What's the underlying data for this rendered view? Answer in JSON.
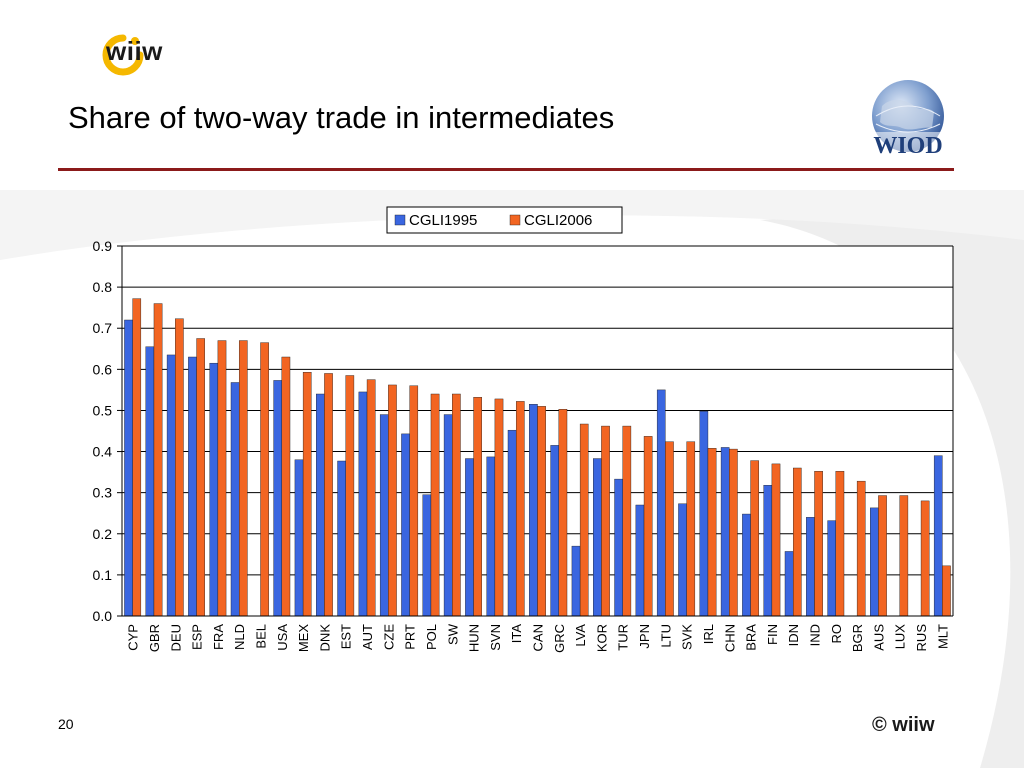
{
  "slide": {
    "logo_text": "wiiw",
    "title": "Share of two-way trade in intermediates",
    "wiod_logo_text": "WIOD",
    "page_number": "20",
    "copyright": "© wiiw"
  },
  "colors": {
    "series1": "#3a66e0",
    "series2": "#f26522",
    "title_rule": "#8b1a1a",
    "logo_yellow": "#f5b800"
  },
  "chart_data": {
    "type": "bar",
    "title": "",
    "xlabel": "",
    "ylabel": "",
    "ylim": [
      0,
      0.9
    ],
    "yticks": [
      "0.0",
      "0.1",
      "0.2",
      "0.3",
      "0.4",
      "0.5",
      "0.6",
      "0.7",
      "0.8",
      "0.9"
    ],
    "grid": true,
    "legend_position": "top",
    "categories": [
      "CYP",
      "GBR",
      "DEU",
      "ESP",
      "FRA",
      "NLD",
      "BEL",
      "USA",
      "MEX",
      "DNK",
      "EST",
      "AUT",
      "CZE",
      "PRT",
      "POL",
      "SW",
      "HUN",
      "SVN",
      "ITA",
      "CAN",
      "GRC",
      "LVA",
      "KOR",
      "TUR",
      "JPN",
      "LTU",
      "SVK",
      "IRL",
      "CHN",
      "BRA",
      "FIN",
      "IDN",
      "IND",
      "RO",
      "BGR",
      "AUS",
      "LUX",
      "RUS",
      "MLT"
    ],
    "series": [
      {
        "name": "CGLI1995",
        "values": [
          0.72,
          0.655,
          0.635,
          0.63,
          0.615,
          0.568,
          null,
          0.573,
          0.38,
          0.54,
          0.377,
          0.545,
          0.49,
          0.443,
          0.295,
          0.49,
          0.383,
          0.387,
          0.452,
          0.515,
          0.415,
          0.17,
          0.383,
          0.333,
          0.27,
          0.55,
          0.273,
          0.498,
          0.41,
          0.248,
          0.318,
          0.157,
          0.24,
          0.232,
          null,
          0.263,
          null,
          null,
          0.39
        ]
      },
      {
        "name": "CGLI2006",
        "values": [
          0.772,
          0.76,
          0.723,
          0.675,
          0.67,
          0.67,
          0.665,
          0.63,
          0.593,
          0.59,
          0.585,
          0.575,
          0.562,
          0.56,
          0.54,
          0.54,
          0.532,
          0.528,
          0.522,
          0.51,
          0.503,
          0.467,
          0.462,
          0.462,
          0.437,
          0.424,
          0.424,
          0.408,
          0.406,
          0.378,
          0.37,
          0.36,
          0.352,
          0.352,
          0.328,
          0.293,
          0.293,
          0.28,
          0.122
        ]
      }
    ]
  }
}
